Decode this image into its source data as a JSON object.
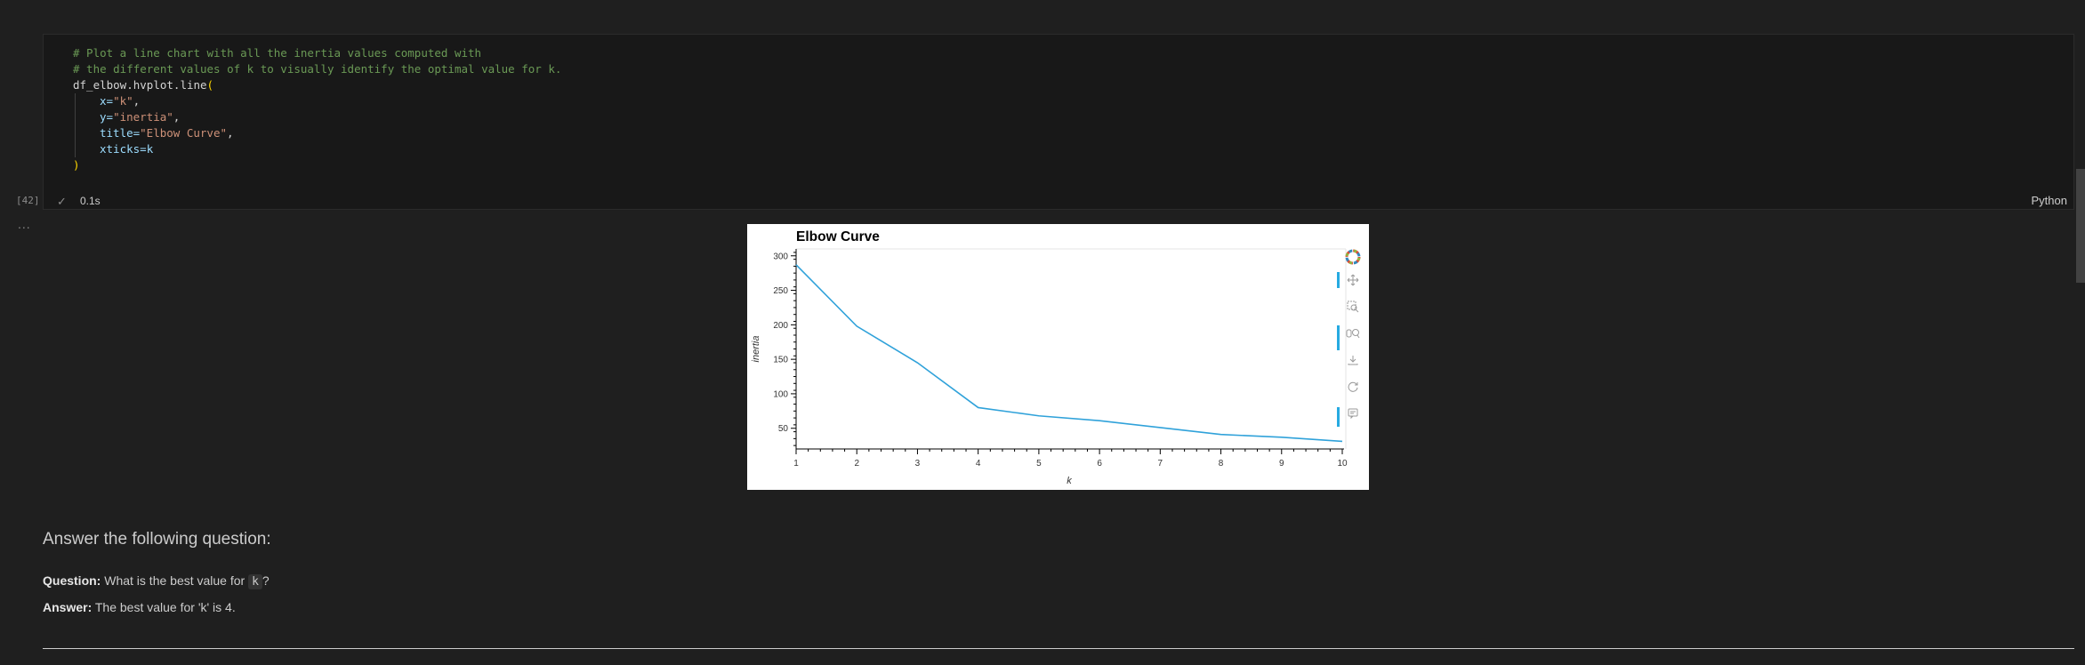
{
  "code_cell": {
    "lines": [
      {
        "kind": "comment",
        "text": "# Plot a line chart with all the inertia values computed with"
      },
      {
        "kind": "comment",
        "text": "# the different values of k to visually identify the optimal value for k."
      },
      {
        "kind": "call",
        "text": "df_elbow.hvplot.line("
      },
      {
        "kind": "arg",
        "key": "x=",
        "val": "\"k\","
      },
      {
        "kind": "arg",
        "key": "y=",
        "val": "\"inertia\","
      },
      {
        "kind": "arg",
        "key": "title=",
        "val": "\"Elbow Curve\","
      },
      {
        "kind": "arg",
        "key": "xticks=",
        "val": "k"
      },
      {
        "kind": "close",
        "text": ")"
      }
    ],
    "execution_count": "[42]",
    "status_check": "✓",
    "duration": "0.1s",
    "language": "Python"
  },
  "output": {
    "ellipsis": "..."
  },
  "chart_data": {
    "type": "line",
    "title": "Elbow Curve",
    "xlabel": "k",
    "ylabel": "inertia",
    "x": [
      1,
      2,
      3,
      4,
      5,
      6,
      7,
      8,
      9,
      10
    ],
    "series": [
      {
        "values": [
          287,
          198,
          145,
          80,
          68,
          61,
          51,
          41,
          37,
          31
        ],
        "color": "#30a2da"
      }
    ],
    "xlim": [
      1,
      10
    ],
    "ylim": [
      25,
      300
    ],
    "yticks": [
      50,
      100,
      150,
      200,
      250,
      300
    ],
    "xticks": [
      1,
      2,
      3,
      4,
      5,
      6,
      7,
      8,
      9,
      10
    ],
    "grid": false
  },
  "toolbar": {
    "icons": [
      "bokeh-logo-icon",
      "pan-icon",
      "box-zoom-icon",
      "wheel-zoom-icon",
      "save-icon",
      "reset-icon",
      "hover-icon"
    ]
  },
  "markdown": {
    "heading": "Answer the following question:",
    "question_label": "Question:",
    "question_text": "What is the best value for",
    "question_code": "k",
    "question_end": "?",
    "answer_label": "Answer:",
    "answer_text": "The best value for 'k' is 4."
  }
}
